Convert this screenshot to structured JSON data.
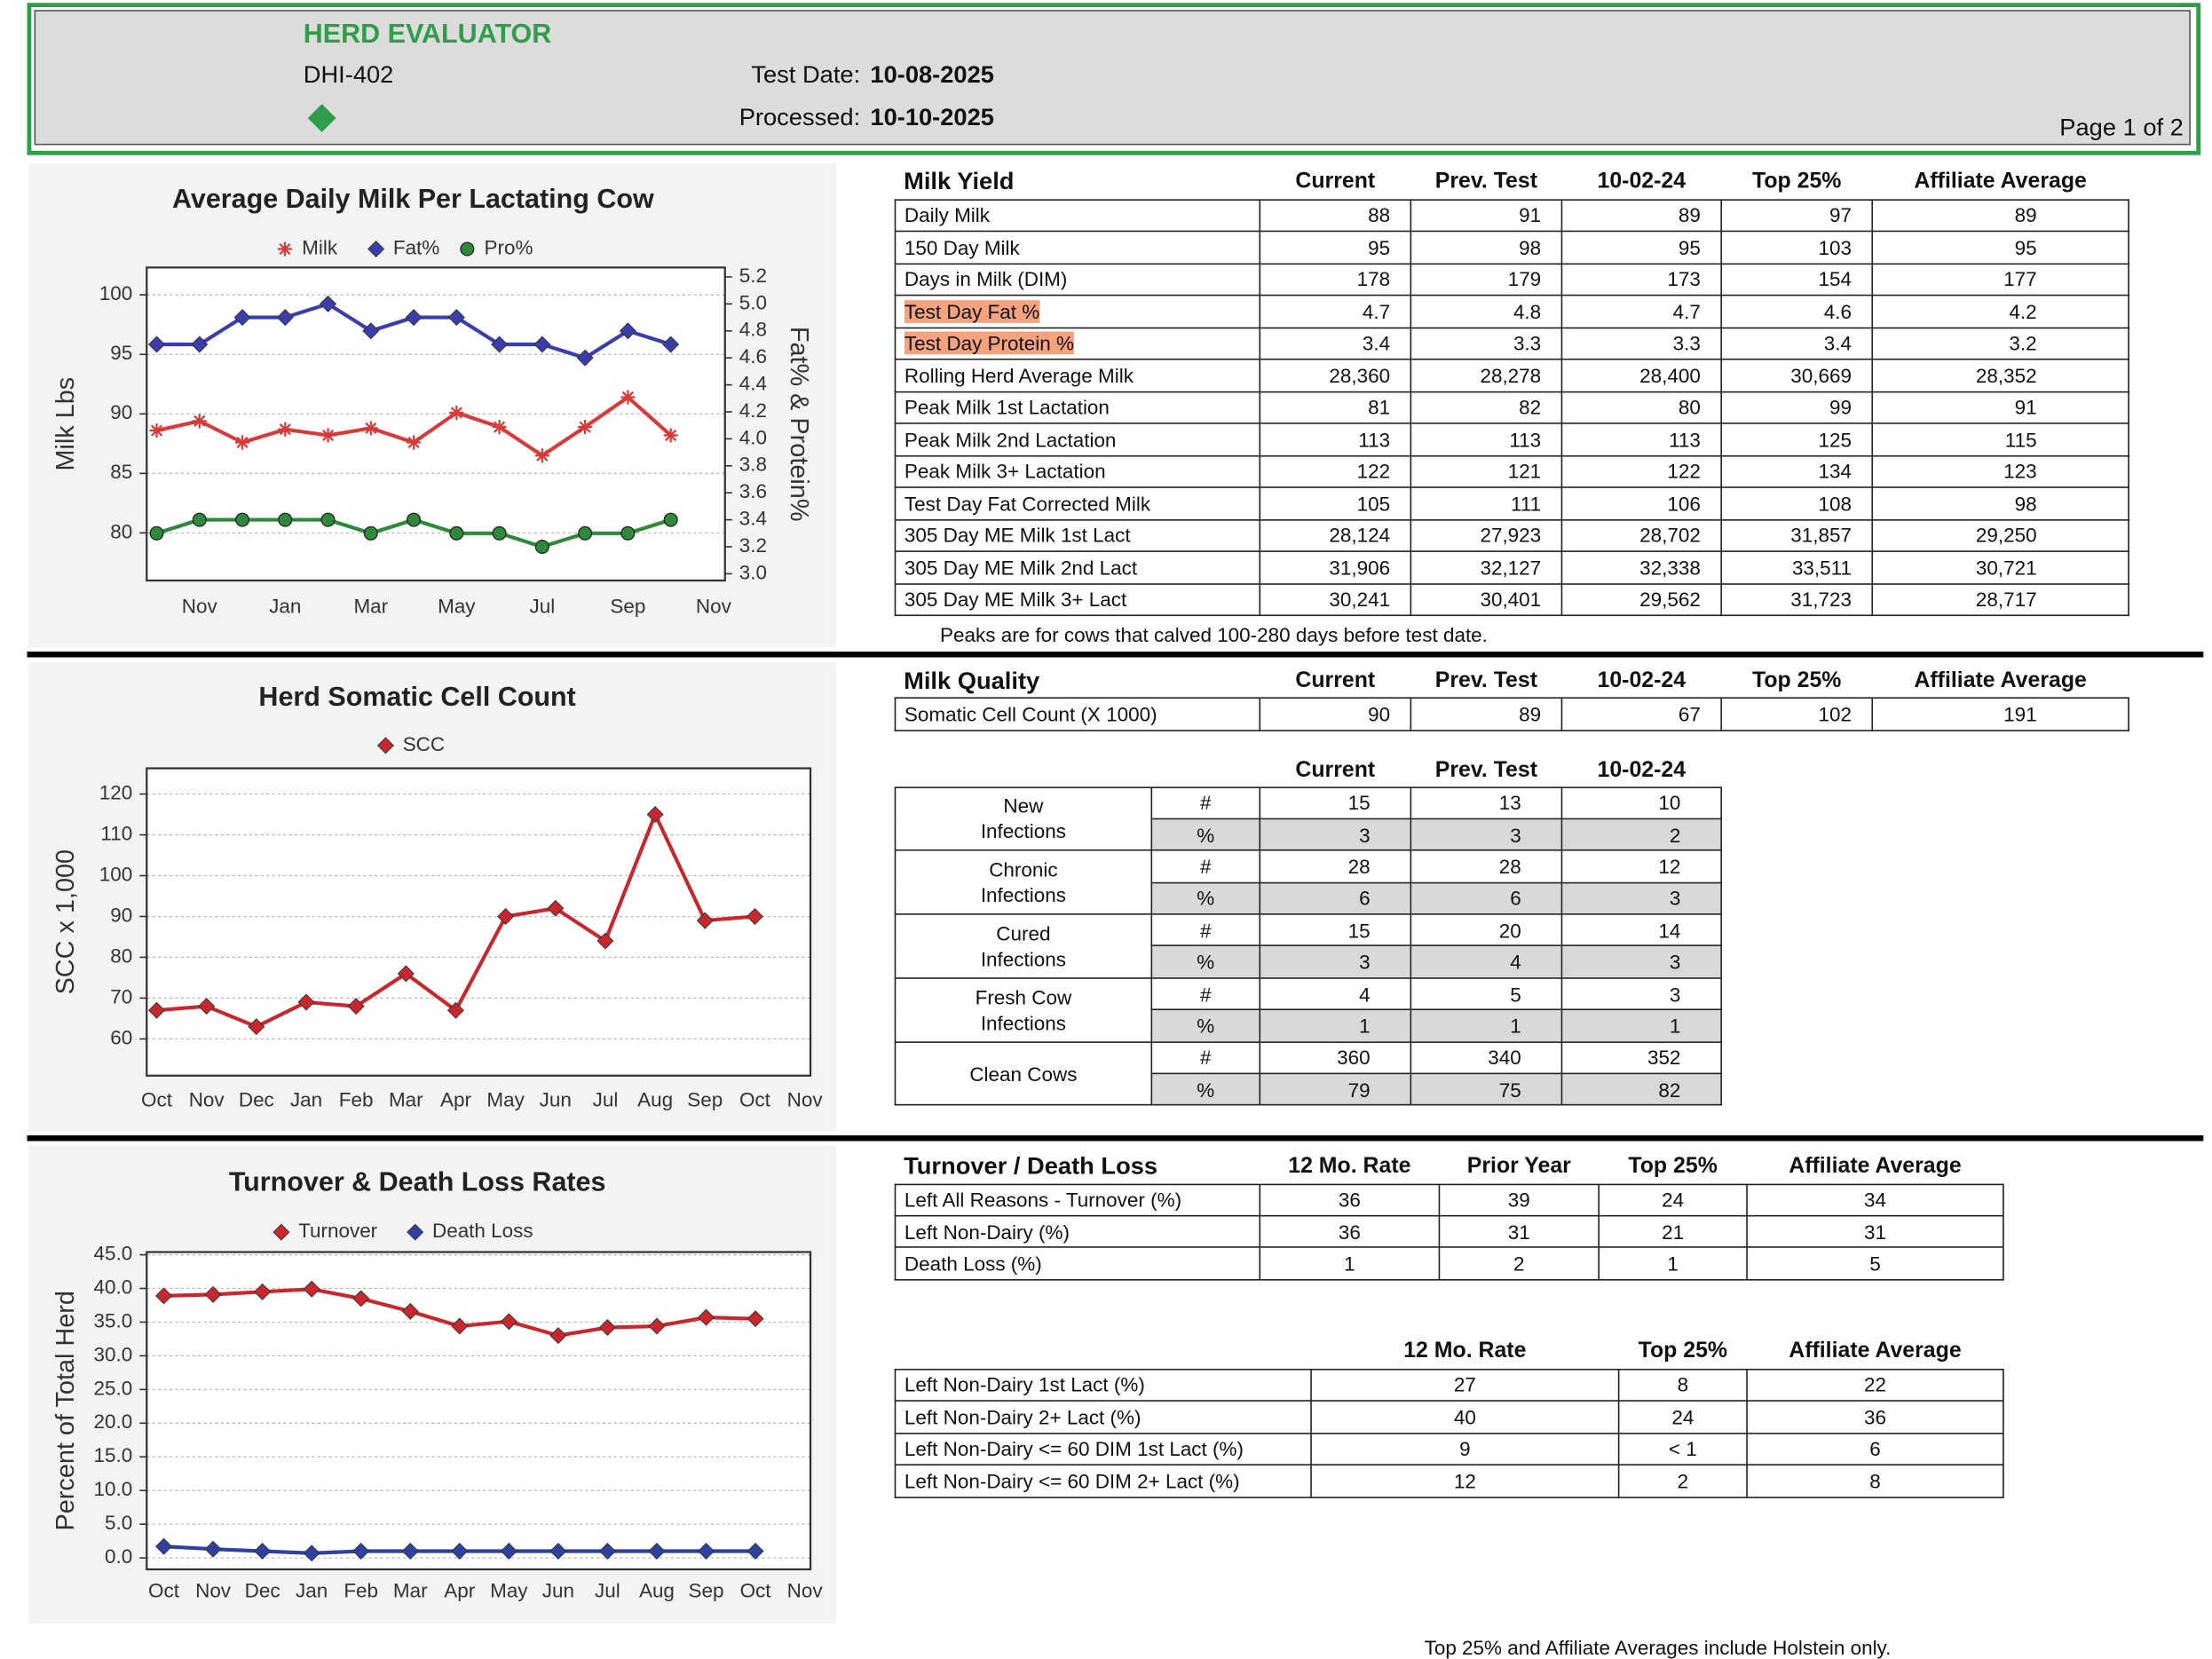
{
  "header": {
    "title": "HERD EVALUATOR",
    "report_id": "DHI-402",
    "test_date_label": "Test Date:",
    "test_date": "10-08-2025",
    "processed_label": "Processed:",
    "processed_date": "10-10-2025",
    "page": "Page 1 of 2"
  },
  "chart_data": [
    {
      "type": "line",
      "title": "Average Daily Milk Per Lactating Cow",
      "y_label": "Milk Lbs",
      "y2_label": "Fat% & Protein%",
      "grid": true,
      "categories": [
        null,
        "Nov",
        null,
        "Jan",
        null,
        "Mar",
        null,
        "May",
        null,
        "Jul",
        null,
        "Sep",
        null,
        "Nov"
      ],
      "ylim": [
        76,
        102.3
      ],
      "yticks": [
        80,
        85,
        90,
        95,
        100
      ],
      "y2lim": [
        2.95,
        5.27
      ],
      "y2ticks": [
        {
          "value": 3.0,
          "label": "3.0"
        },
        3.2,
        3.4,
        3.6,
        3.8,
        {
          "value": 4.0,
          "label": "4.0"
        },
        4.2,
        4.4,
        4.6,
        4.8,
        {
          "value": 5.0,
          "label": "5.0"
        },
        5.2
      ],
      "series": [
        {
          "name": "Milk",
          "color": "#d83a3a",
          "marker": "star",
          "values": [
            88.6,
            89.4,
            87.6,
            88.7,
            88.2,
            88.8,
            87.6,
            90.1,
            88.9,
            86.5,
            88.9,
            91.4,
            88.2,
            null
          ]
        },
        {
          "name": "Fat%",
          "color": "#3a3ea8",
          "marker": "diamond",
          "axis": "y2",
          "values": [
            4.7,
            4.7,
            4.9,
            4.9,
            5.0,
            4.8,
            4.9,
            4.9,
            4.7,
            4.7,
            4.6,
            4.8,
            4.7,
            null
          ]
        },
        {
          "name": "Pro%",
          "color": "#2e8a3a",
          "marker": "circle",
          "axis": "y2",
          "values": [
            3.3,
            3.4,
            3.4,
            3.4,
            3.4,
            3.3,
            3.4,
            3.3,
            3.3,
            3.2,
            3.3,
            3.3,
            3.4,
            null
          ]
        }
      ]
    },
    {
      "type": "line",
      "title": "Herd Somatic Cell Count",
      "y_label": "SCC x 1,000",
      "grid": true,
      "categories": [
        "Oct",
        "Nov",
        "Dec",
        "Jan",
        "Feb",
        "Mar",
        "Apr",
        "May",
        "Jun",
        "Jul",
        "Aug",
        "Sep",
        "Oct",
        "Nov"
      ],
      "ylim": [
        51,
        126.3
      ],
      "yticks": [
        60,
        70,
        80,
        90,
        100,
        110,
        120
      ],
      "series": [
        {
          "name": "SCC",
          "color": "#c8282d",
          "marker": "diamond",
          "values": [
            67,
            68,
            63,
            69,
            68,
            76,
            67,
            90,
            92,
            84,
            115,
            89,
            90,
            null
          ]
        }
      ]
    },
    {
      "type": "line",
      "title": "Turnover & Death Loss Rates",
      "y_label": "Percent of Total Herd",
      "grid": true,
      "categories": [
        "Oct",
        "Nov",
        "Dec",
        "Jan",
        "Feb",
        "Mar",
        "Apr",
        "May",
        "Jun",
        "Jul",
        "Aug",
        "Sep",
        "Oct",
        "Nov"
      ],
      "ylim": [
        -1.7,
        45.4
      ],
      "yticks": [
        {
          "value": 0,
          "label": "0.0"
        },
        {
          "value": 5,
          "label": "5.0"
        },
        {
          "value": 10,
          "label": "10.0"
        },
        {
          "value": 15,
          "label": "15.0"
        },
        {
          "value": 20,
          "label": "20.0"
        },
        {
          "value": 25,
          "label": "25.0"
        },
        {
          "value": 30,
          "label": "30.0"
        },
        {
          "value": 35,
          "label": "35.0"
        },
        {
          "value": 40,
          "label": "40.0"
        },
        {
          "value": 45,
          "label": "45.0"
        }
      ],
      "series": [
        {
          "name": "Turnover",
          "color": "#c8282d",
          "marker": "diamond",
          "values": [
            38.9,
            39.1,
            39.5,
            39.9,
            38.5,
            36.6,
            34.4,
            35.1,
            33.0,
            34.2,
            34.4,
            35.7,
            35.5,
            null
          ]
        },
        {
          "name": "Death Loss",
          "color": "#3040a0",
          "marker": "diamond",
          "values": [
            1.7,
            1.3,
            1.0,
            0.7,
            1.0,
            1.0,
            1.0,
            1.0,
            1.0,
            1.0,
            1.0,
            1.0,
            1.0,
            null
          ]
        }
      ]
    }
  ],
  "tables": {
    "milk_yield": {
      "columns": [
        "Milk Yield",
        "Current",
        "Prev. Test",
        "10-02-24",
        "Top 25%",
        "Affiliate Average"
      ],
      "highlight_rows": [
        3,
        4
      ],
      "highlight_color": "#f4a37e",
      "rows": [
        [
          "Daily Milk",
          "88",
          "91",
          "89",
          "97",
          "89"
        ],
        [
          "150 Day Milk",
          "95",
          "98",
          "95",
          "103",
          "95"
        ],
        [
          "Days in Milk (DIM)",
          "178",
          "179",
          "173",
          "154",
          "177"
        ],
        [
          "Test Day Fat %",
          "4.7",
          "4.8",
          "4.7",
          "4.6",
          "4.2"
        ],
        [
          "Test Day Protein %",
          "3.4",
          "3.3",
          "3.3",
          "3.4",
          "3.2"
        ],
        [
          "Rolling Herd Average Milk",
          "28,360",
          "28,278",
          "28,400",
          "30,669",
          "28,352"
        ],
        [
          "Peak Milk 1st Lactation",
          "81",
          "82",
          "80",
          "99",
          "91"
        ],
        [
          "Peak Milk 2nd Lactation",
          "113",
          "113",
          "113",
          "125",
          "115"
        ],
        [
          "Peak Milk 3+ Lactation",
          "122",
          "121",
          "122",
          "134",
          "123"
        ],
        [
          "Test Day Fat Corrected Milk",
          "105",
          "111",
          "106",
          "108",
          "98"
        ],
        [
          "305 Day ME Milk 1st Lact",
          "28,124",
          "27,923",
          "28,702",
          "31,857",
          "29,250"
        ],
        [
          "305 Day ME Milk 2nd Lact",
          "31,906",
          "32,127",
          "32,338",
          "33,511",
          "30,721"
        ],
        [
          "305 Day ME Milk 3+ Lact",
          "30,241",
          "30,401",
          "29,562",
          "31,723",
          "28,717"
        ]
      ],
      "note": "Peaks are for cows that calved 100-280 days before test date."
    },
    "milk_quality": {
      "columns": [
        "Milk Quality",
        "Current",
        "Prev. Test",
        "10-02-24",
        "Top 25%",
        "Affiliate Average"
      ],
      "rows": [
        [
          "Somatic Cell Count (X 1000)",
          "90",
          "89",
          "67",
          "102",
          "191"
        ]
      ]
    },
    "infections": {
      "columns": [
        "Current",
        "Prev. Test",
        "10-02-24"
      ],
      "groups": [
        {
          "label": "New Infections",
          "rows": [
            [
              "#",
              "15",
              "13",
              "10"
            ],
            [
              "%",
              "3",
              "3",
              "2"
            ]
          ]
        },
        {
          "label": "Chronic Infections",
          "rows": [
            [
              "#",
              "28",
              "28",
              "12"
            ],
            [
              "%",
              "6",
              "6",
              "3"
            ]
          ]
        },
        {
          "label": "Cured Infections",
          "rows": [
            [
              "#",
              "15",
              "20",
              "14"
            ],
            [
              "%",
              "3",
              "4",
              "3"
            ]
          ]
        },
        {
          "label": "Fresh Cow Infections",
          "rows": [
            [
              "#",
              "4",
              "5",
              "3"
            ],
            [
              "%",
              "1",
              "1",
              "1"
            ]
          ]
        },
        {
          "label": "Clean Cows",
          "rows": [
            [
              "#",
              "360",
              "340",
              "352"
            ],
            [
              "%",
              "79",
              "75",
              "82"
            ]
          ]
        }
      ]
    },
    "turnover": {
      "columns": [
        "Turnover / Death Loss",
        "12 Mo. Rate",
        "Prior Year",
        "Top 25%",
        "Affiliate Average"
      ],
      "rows": [
        [
          "Left All Reasons - Turnover (%)",
          "36",
          "39",
          "24",
          "34"
        ],
        [
          "Left Non-Dairy (%)",
          "36",
          "31",
          "21",
          "31"
        ],
        [
          "Death Loss (%)",
          "1",
          "2",
          "1",
          "5"
        ]
      ]
    },
    "non_dairy": {
      "columns": [
        "12 Mo. Rate",
        "Top 25%",
        "Affiliate Average"
      ],
      "rows": [
        [
          "Left Non-Dairy 1st Lact (%)",
          "27",
          "8",
          "22"
        ],
        [
          "Left Non-Dairy 2+ Lact (%)",
          "40",
          "24",
          "36"
        ],
        [
          "Left Non-Dairy <= 60 DIM 1st Lact (%)",
          "9",
          "< 1",
          "6"
        ],
        [
          "Left Non-Dairy <= 60 DIM 2+ Lact (%)",
          "12",
          "2",
          "8"
        ]
      ]
    }
  },
  "footer": "Top 25% and Affiliate Averages include Holstein only."
}
